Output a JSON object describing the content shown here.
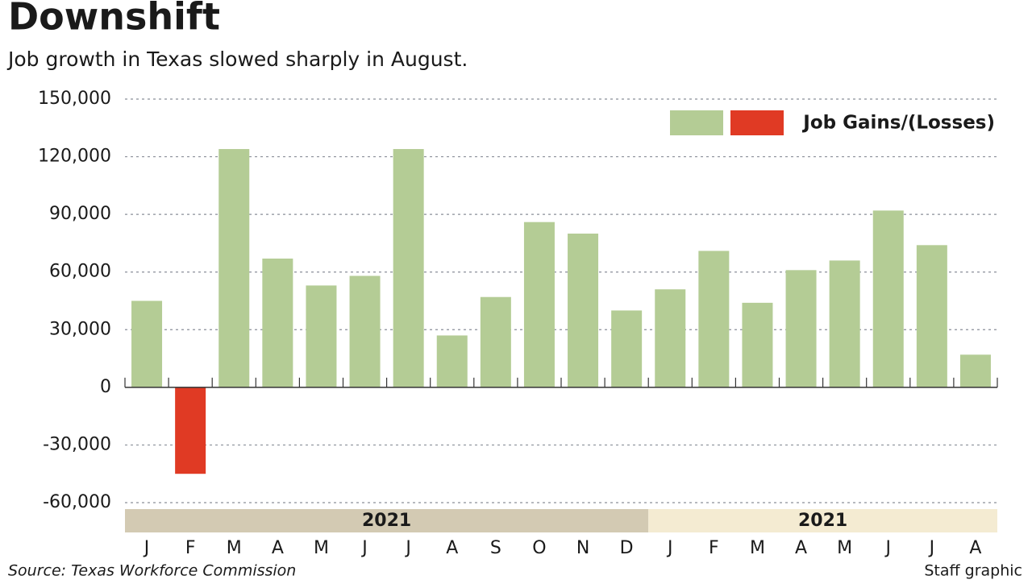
{
  "chart_data": {
    "type": "bar",
    "title": "Downshift",
    "subtitle": "Job growth in Texas slowed sharply in August.",
    "categories": [
      "J",
      "F",
      "M",
      "A",
      "M",
      "J",
      "J",
      "A",
      "S",
      "O",
      "N",
      "D",
      "J",
      "F",
      "M",
      "A",
      "M",
      "J",
      "J",
      "A"
    ],
    "series": [
      {
        "name": "Job Gains/(Losses)",
        "color": "#b4cc95",
        "negative_color": "#e03a24",
        "values": [
          45000,
          -45000,
          124000,
          67000,
          53000,
          58000,
          124000,
          27000,
          47000,
          86000,
          80000,
          40000,
          51000,
          71000,
          44000,
          61000,
          66000,
          92000,
          74000,
          17000
        ]
      }
    ],
    "year_groups": [
      {
        "label": "2021",
        "count": 12,
        "color": "#d3cab3"
      },
      {
        "label": "2021",
        "count": 8,
        "color": "#f4ebd2"
      }
    ],
    "ylim": [
      -60000,
      150000
    ],
    "yticks": [
      {
        "value": -60000,
        "label": "-60,000"
      },
      {
        "value": -30000,
        "label": "-30,000"
      },
      0,
      {
        "value": 30000,
        "label": "30,000"
      },
      {
        "value": 60000,
        "label": "60,000"
      },
      {
        "value": 90000,
        "label": "90,000"
      },
      {
        "value": 120000,
        "label": "120,000"
      },
      {
        "value": 150000,
        "label": "150,000"
      }
    ],
    "grid": true,
    "legend": "top-right",
    "source": "Source: Texas Workforce Commission",
    "credit": "Staff graphic"
  }
}
